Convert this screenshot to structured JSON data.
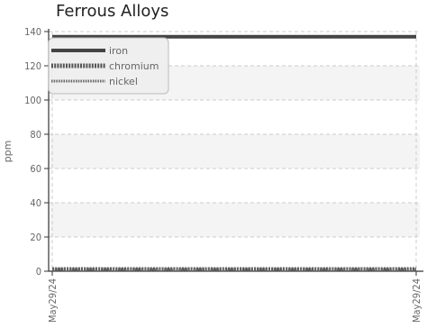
{
  "chart_data": {
    "type": "line",
    "title": "Ferrous Alloys",
    "xlabel": "",
    "ylabel": "ppm",
    "ylim": [
      0,
      140
    ],
    "yticks": [
      0,
      20,
      40,
      60,
      80,
      100,
      120,
      140
    ],
    "x_tick_labels": [
      "May29/24",
      "May29/24"
    ],
    "grid": true,
    "legend_position": "top-left",
    "series": [
      {
        "name": "iron",
        "values": [
          137,
          137
        ],
        "color": "#444444",
        "style": "solid"
      },
      {
        "name": "chromium",
        "values": [
          0,
          0
        ],
        "color": "#555555",
        "style": "dotted-thick"
      },
      {
        "name": "nickel",
        "values": [
          0,
          0
        ],
        "color": "#666666",
        "style": "dotted-thin"
      }
    ]
  }
}
